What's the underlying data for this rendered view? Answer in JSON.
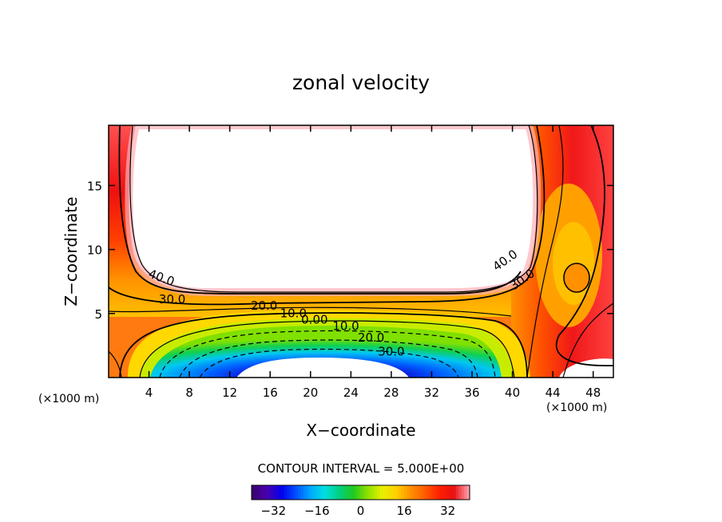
{
  "chart_data": {
    "type": "contour",
    "title": "zonal velocity",
    "xlabel": "X−coordinate",
    "ylabel": "Z−coordinate",
    "x_unit_left": "(×1000 m)",
    "x_unit_right": "(×1000 m)",
    "xlim": [
      0,
      50
    ],
    "ylim": [
      0,
      19.7
    ],
    "x_ticks": [
      4,
      8,
      12,
      16,
      20,
      24,
      28,
      32,
      36,
      40,
      44,
      48
    ],
    "y_ticks": [
      5,
      10,
      15
    ],
    "contour_interval_text": "CONTOUR INTERVAL = 5.000E+00",
    "contour_interval": 5.0,
    "colorbar": {
      "min": -40,
      "max": 40,
      "ticks": [
        -32,
        -16,
        0,
        16,
        32
      ]
    },
    "contour_labels": [
      {
        "text": "40.0",
        "x": 5.1,
        "y": 7.5
      },
      {
        "text": "30.0",
        "x": 6.3,
        "y": 5.8
      },
      {
        "text": "20.0",
        "x": 15.4,
        "y": 5.3
      },
      {
        "text": "10.0",
        "x": 18.3,
        "y": 4.7
      },
      {
        "text": "0.00",
        "x": 20.4,
        "y": 4.2
      },
      {
        "text": "10.0",
        "x": 23.5,
        "y": 3.7
      },
      {
        "text": "20.0",
        "x": 26.0,
        "y": 2.8
      },
      {
        "text": "30.0",
        "x": 28.0,
        "y": 1.7
      },
      {
        "text": "40.0",
        "x": 39.5,
        "y": 8.9
      },
      {
        "text": "30.0",
        "x": 41.2,
        "y": 7.4
      }
    ],
    "colors": {
      "scale": [
        "#3a0070",
        "#4a00b0",
        "#0000ee",
        "#0050ff",
        "#00a8ff",
        "#00e0e0",
        "#00d080",
        "#20c820",
        "#90e000",
        "#e8f000",
        "#ffd000",
        "#ff9000",
        "#ff5a00",
        "#ff2000",
        "#e81010",
        "#ff9aa8"
      ]
    }
  }
}
